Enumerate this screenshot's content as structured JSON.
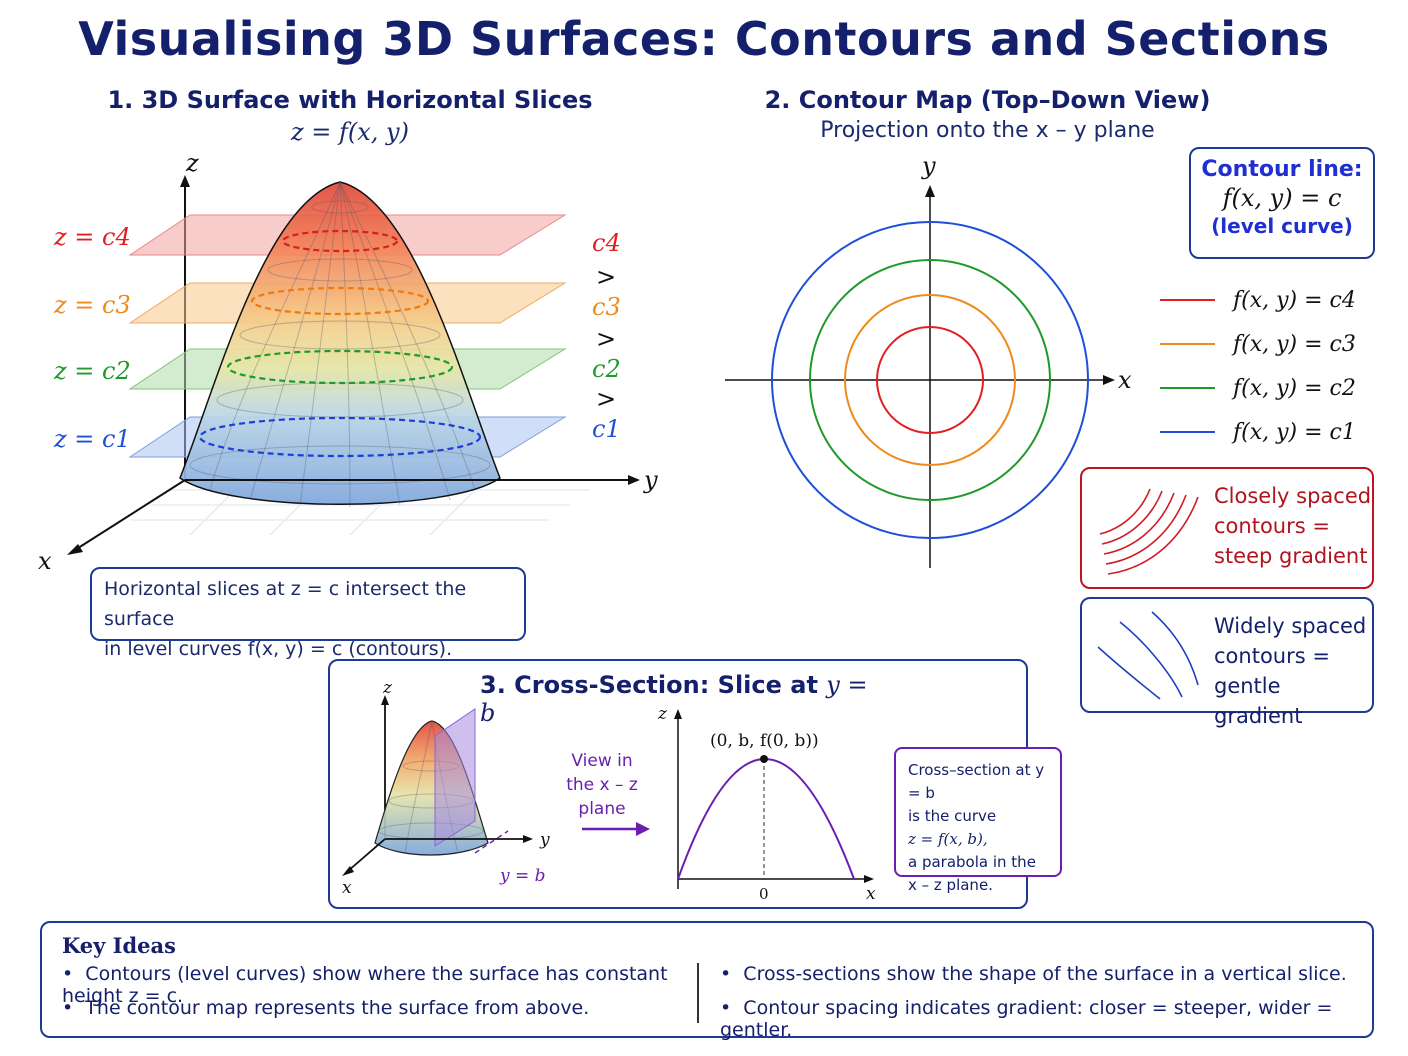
{
  "title": "Visualising 3D Surfaces: Contours and Sections",
  "panel1": {
    "heading": "1. 3D Surface with Horizontal Slices",
    "formula": "z = f(x, y)",
    "axis_x": "x",
    "axis_y": "y",
    "axis_z": "z",
    "slice_labels": [
      "z = c4",
      "z = c3",
      "z = c2",
      "z = c1"
    ],
    "order_labels": [
      "c4",
      ">",
      "c3",
      ">",
      "c2",
      ">",
      "c1"
    ],
    "caption_line1": "Horizontal slices at z = c intersect the surface",
    "caption_line2": "in level curves f(x, y) = c (contours)."
  },
  "panel2": {
    "heading": "2. Contour Map (Top–Down View)",
    "subheading": "Projection onto the x – y plane",
    "axis_x": "x",
    "axis_y": "y",
    "definition_title": "Contour line:",
    "definition_formula": "f(x, y) = c",
    "definition_note": "(level curve)",
    "legend": [
      {
        "label": "f(x, y) = c4",
        "color": "#e02020"
      },
      {
        "label": "f(x, y) = c3",
        "color": "#f08a1c"
      },
      {
        "label": "f(x, y) = c2",
        "color": "#1f9a2a"
      },
      {
        "label": "f(x, y) = c1",
        "color": "#1f4fd8"
      }
    ],
    "steep_text": [
      "Closely spaced",
      "contours =",
      "steep gradient"
    ],
    "gentle_text": [
      "Widely spaced",
      "contours =",
      "gentle gradient"
    ]
  },
  "panel3": {
    "heading_prefix": "3. Cross-Section: Slice at ",
    "heading_math": "y = b",
    "axis_x": "x",
    "axis_y": "y",
    "axis_z": "z",
    "plane_label": "y = b",
    "view_text": [
      "View in",
      "the x – z",
      "plane"
    ],
    "peak_label": "(0, b, f(0, b))",
    "origin_label": "0",
    "explain": [
      "Cross–section at y = b",
      "is the curve",
      "z = f(x, b),",
      "a parabola in the",
      "x – z plane."
    ]
  },
  "key_ideas": {
    "heading": "Key Ideas",
    "left": [
      "Contours (level curves) show where the surface has constant height z = c.",
      "The contour map represents the surface from above."
    ],
    "right": [
      "Cross-sections show the shape of the surface in a vertical slice.",
      "Contour spacing indicates gradient: closer = steeper, wider = gentler."
    ]
  },
  "colors": {
    "navy": "#14206b",
    "red": "#e02020",
    "orange": "#f08a1c",
    "green": "#1f9a2a",
    "blue": "#1f4fd8",
    "purple": "#6a1fb0",
    "steep_border": "#c0141e"
  }
}
